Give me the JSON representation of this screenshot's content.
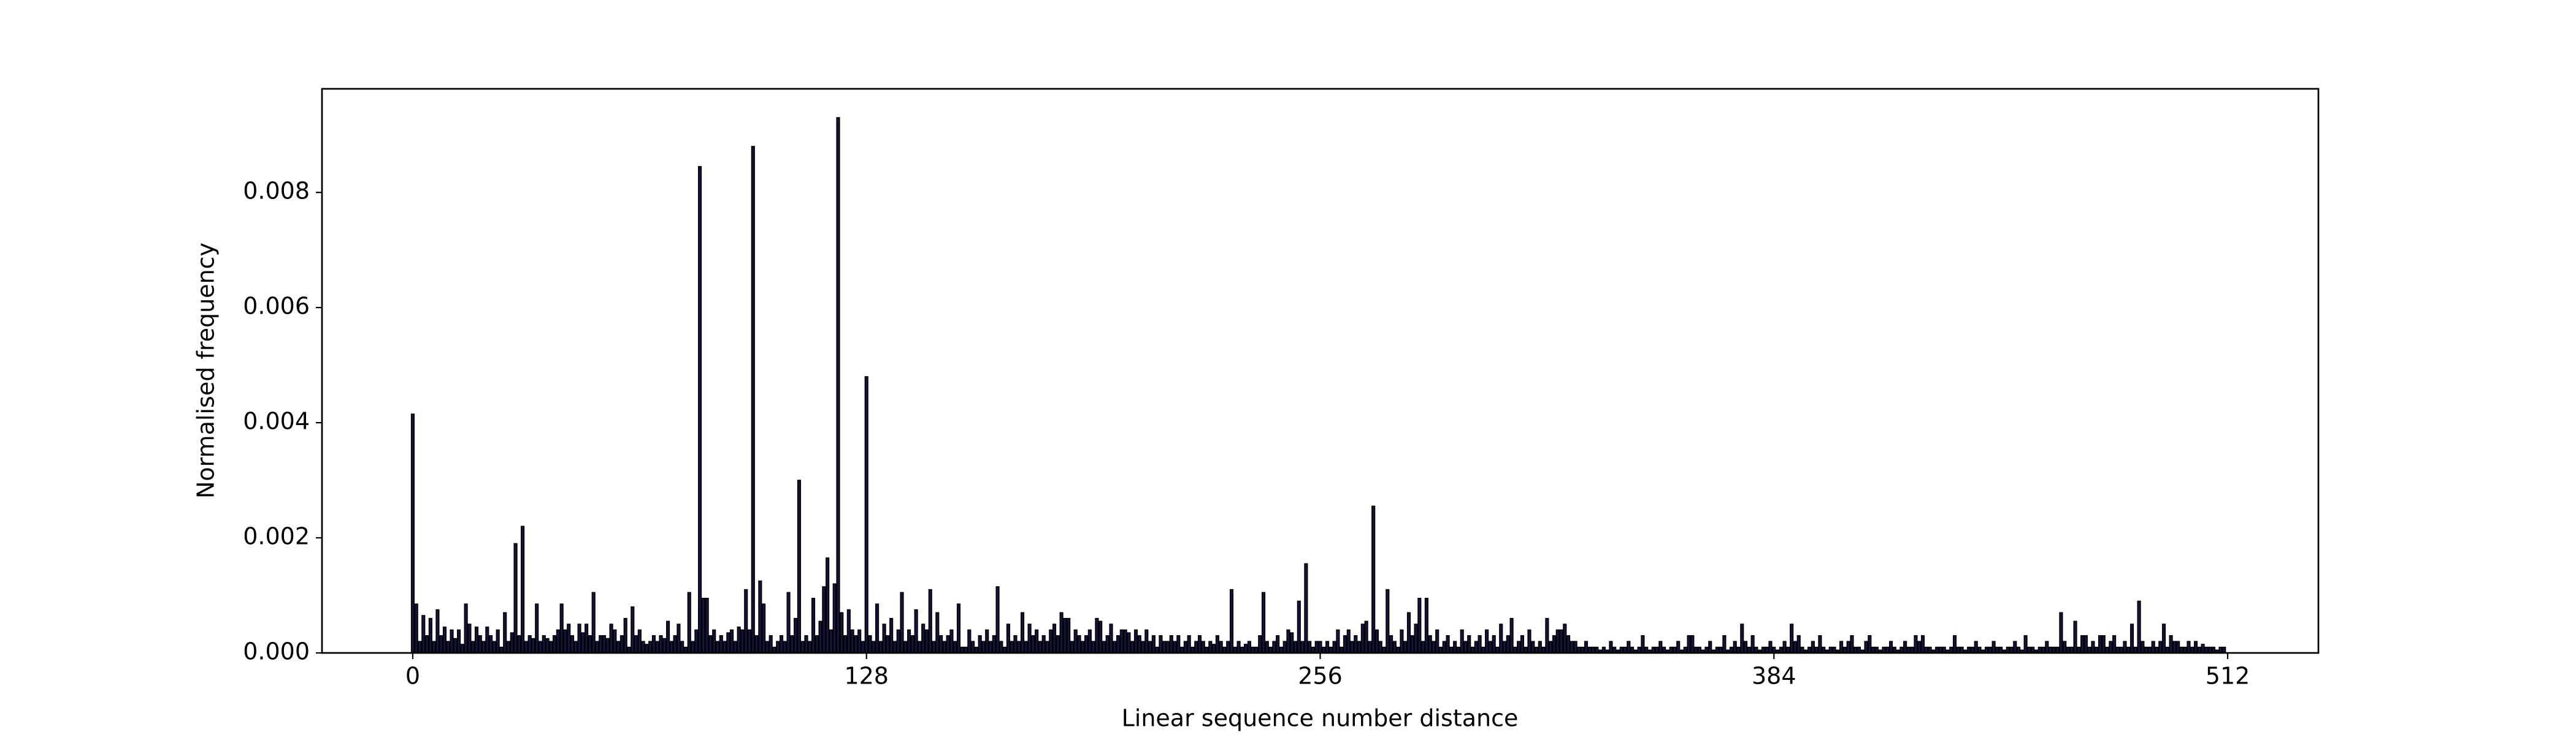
{
  "chart_data": {
    "type": "bar",
    "xlabel": "Linear sequence number distance",
    "ylabel": "Normalised frequency",
    "color": "#14143c",
    "edgecolor": "#000000",
    "xlim": [
      -25.6,
      537.6
    ],
    "ylim": [
      0,
      0.0098
    ],
    "xticks": [
      0,
      128,
      256,
      384,
      512
    ],
    "yticks": [
      {
        "value": 0,
        "label": "0.000"
      },
      {
        "value": 0.002,
        "label": "0.002"
      },
      {
        "value": 0.004,
        "label": "0.004"
      },
      {
        "value": 0.006,
        "label": "0.006"
      },
      {
        "value": 0.008,
        "label": "0.008"
      }
    ],
    "x": [
      0,
      1,
      2,
      3,
      4,
      5,
      6,
      7,
      8,
      9,
      10,
      11,
      12,
      13,
      14,
      15,
      16,
      17,
      18,
      19,
      20,
      21,
      22,
      23,
      24,
      25,
      26,
      27,
      28,
      29,
      30,
      31,
      32,
      33,
      34,
      35,
      36,
      37,
      38,
      39,
      40,
      41,
      42,
      43,
      44,
      45,
      46,
      47,
      48,
      49,
      50,
      51,
      52,
      53,
      54,
      55,
      56,
      57,
      58,
      59,
      60,
      61,
      62,
      63,
      64,
      65,
      66,
      67,
      68,
      69,
      70,
      71,
      72,
      73,
      74,
      75,
      76,
      77,
      78,
      79,
      80,
      81,
      82,
      83,
      84,
      85,
      86,
      87,
      88,
      89,
      90,
      91,
      92,
      93,
      94,
      95,
      96,
      97,
      98,
      99,
      100,
      101,
      102,
      103,
      104,
      105,
      106,
      107,
      108,
      109,
      110,
      111,
      112,
      113,
      114,
      115,
      116,
      117,
      118,
      119,
      120,
      121,
      122,
      123,
      124,
      125,
      126,
      127,
      128,
      129,
      130,
      131,
      132,
      133,
      134,
      135,
      136,
      137,
      138,
      139,
      140,
      141,
      142,
      143,
      144,
      145,
      146,
      147,
      148,
      149,
      150,
      151,
      152,
      153,
      154,
      155,
      156,
      157,
      158,
      159,
      160,
      161,
      162,
      163,
      164,
      165,
      166,
      167,
      168,
      169,
      170,
      171,
      172,
      173,
      174,
      175,
      176,
      177,
      178,
      179,
      180,
      181,
      182,
      183,
      184,
      185,
      186,
      187,
      188,
      189,
      190,
      191,
      192,
      193,
      194,
      195,
      196,
      197,
      198,
      199,
      200,
      201,
      202,
      203,
      204,
      205,
      206,
      207,
      208,
      209,
      210,
      211,
      212,
      213,
      214,
      215,
      216,
      217,
      218,
      219,
      220,
      221,
      222,
      223,
      224,
      225,
      226,
      227,
      228,
      229,
      230,
      231,
      232,
      233,
      234,
      235,
      236,
      237,
      238,
      239,
      240,
      241,
      242,
      243,
      244,
      245,
      246,
      247,
      248,
      249,
      250,
      251,
      252,
      253,
      254,
      255,
      256,
      257,
      258,
      259,
      260,
      261,
      262,
      263,
      264,
      265,
      266,
      267,
      268,
      269,
      270,
      271,
      272,
      273,
      274,
      275,
      276,
      277,
      278,
      279,
      280,
      281,
      282,
      283,
      284,
      285,
      286,
      287,
      288,
      289,
      290,
      291,
      292,
      293,
      294,
      295,
      296,
      297,
      298,
      299,
      300,
      301,
      302,
      303,
      304,
      305,
      306,
      307,
      308,
      309,
      310,
      311,
      312,
      313,
      314,
      315,
      316,
      317,
      318,
      319,
      320,
      321,
      322,
      323,
      324,
      325,
      326,
      327,
      328,
      329,
      330,
      331,
      332,
      333,
      334,
      335,
      336,
      337,
      338,
      339,
      340,
      341,
      342,
      343,
      344,
      345,
      346,
      347,
      348,
      349,
      350,
      351,
      352,
      353,
      354,
      355,
      356,
      357,
      358,
      359,
      360,
      361,
      362,
      363,
      364,
      365,
      366,
      367,
      368,
      369,
      370,
      371,
      372,
      373,
      374,
      375,
      376,
      377,
      378,
      379,
      380,
      381,
      382,
      383,
      384,
      385,
      386,
      387,
      388,
      389,
      390,
      391,
      392,
      393,
      394,
      395,
      396,
      397,
      398,
      399,
      400,
      401,
      402,
      403,
      404,
      405,
      406,
      407,
      408,
      409,
      410,
      411,
      412,
      413,
      414,
      415,
      416,
      417,
      418,
      419,
      420,
      421,
      422,
      423,
      424,
      425,
      426,
      427,
      428,
      429,
      430,
      431,
      432,
      433,
      434,
      435,
      436,
      437,
      438,
      439,
      440,
      441,
      442,
      443,
      444,
      445,
      446,
      447,
      448,
      449,
      450,
      451,
      452,
      453,
      454,
      455,
      456,
      457,
      458,
      459,
      460,
      461,
      462,
      463,
      464,
      465,
      466,
      467,
      468,
      469,
      470,
      471,
      472,
      473,
      474,
      475,
      476,
      477,
      478,
      479,
      480,
      481,
      482,
      483,
      484,
      485,
      486,
      487,
      488,
      489,
      490,
      491,
      492,
      493,
      494,
      495,
      496,
      497,
      498,
      499,
      500,
      501,
      502,
      503,
      504,
      505,
      506,
      507,
      508,
      509,
      510,
      511
    ],
    "values": [
      0.00415,
      0.00085,
      0.0002,
      0.00065,
      0.0003,
      0.0006,
      0.0002,
      0.00075,
      0.0003,
      0.00045,
      0.0002,
      0.0004,
      0.00025,
      0.0004,
      0.00015,
      0.00085,
      0.0005,
      0.0002,
      0.00045,
      0.0003,
      0.0002,
      0.00045,
      0.0003,
      0.0002,
      0.0004,
      0.0001,
      0.0007,
      0.0002,
      0.00035,
      0.0019,
      0.0003,
      0.0022,
      0.0002,
      0.0003,
      0.00025,
      0.00085,
      0.0002,
      0.0003,
      0.00025,
      0.0002,
      0.0003,
      0.0004,
      0.00085,
      0.0004,
      0.0005,
      0.0003,
      0.0002,
      0.0005,
      0.00035,
      0.0005,
      0.0003,
      0.00105,
      0.0002,
      0.0003,
      0.0003,
      0.00025,
      0.0005,
      0.0004,
      0.0002,
      0.0003,
      0.0006,
      0.0001,
      0.0008,
      0.0003,
      0.0004,
      0.0002,
      0.00015,
      0.0002,
      0.0003,
      0.0002,
      0.0003,
      0.00025,
      0.00055,
      0.0002,
      0.0003,
      0.0005,
      0.0002,
      0.0001,
      0.00105,
      0.0002,
      0.0004,
      0.00845,
      0.00095,
      0.00095,
      0.0003,
      0.0004,
      0.0002,
      0.0003,
      0.0002,
      0.00035,
      0.0004,
      0.0002,
      0.00045,
      0.0004,
      0.0011,
      0.0004,
      0.0088,
      0.0003,
      0.00125,
      0.00085,
      0.0002,
      0.0003,
      0.0001,
      0.0002,
      0.0003,
      0.0002,
      0.00105,
      0.0003,
      0.0006,
      0.003,
      0.0002,
      0.0003,
      0.0002,
      0.00095,
      0.0003,
      0.00055,
      0.00115,
      0.00165,
      0.0004,
      0.0012,
      0.0093,
      0.0007,
      0.0003,
      0.00075,
      0.0004,
      0.0003,
      0.0004,
      0.0002,
      0.0048,
      0.0003,
      0.0002,
      0.00085,
      0.0002,
      0.0005,
      0.0003,
      0.0006,
      0.0002,
      0.0004,
      0.00105,
      0.0002,
      0.0004,
      0.0003,
      0.00075,
      0.0002,
      0.0005,
      0.0004,
      0.0011,
      0.0002,
      0.0007,
      0.0003,
      0.0002,
      0.0003,
      0.0004,
      0.0002,
      0.00085,
      0.0001,
      0.0001,
      0.0004,
      0.0002,
      0.0001,
      0.0003,
      0.0002,
      0.0004,
      0.0002,
      0.0003,
      0.00115,
      0.0002,
      0.0001,
      0.0005,
      0.0002,
      0.0003,
      0.0002,
      0.0007,
      0.0002,
      0.0005,
      0.0003,
      0.0004,
      0.0002,
      0.0003,
      0.0002,
      0.0004,
      0.0005,
      0.0003,
      0.0007,
      0.0006,
      0.0006,
      0.0002,
      0.0004,
      0.0003,
      0.0002,
      0.0003,
      0.0004,
      0.0002,
      0.0006,
      0.00055,
      0.0002,
      0.0003,
      0.0005,
      0.0002,
      0.0003,
      0.0004,
      0.0004,
      0.00035,
      0.0002,
      0.0004,
      0.0003,
      0.0002,
      0.0004,
      0.0002,
      0.0003,
      0.0001,
      0.0003,
      0.0002,
      0.0002,
      0.0003,
      0.0002,
      0.0003,
      0.0001,
      0.0002,
      0.0003,
      0.0001,
      0.0002,
      0.0003,
      0.0002,
      0.0001,
      0.0002,
      0.00015,
      0.0003,
      0.0002,
      0.0001,
      0.0002,
      0.0011,
      0.0001,
      0.0002,
      0.0001,
      0.00015,
      0.0002,
      0.0001,
      0.0001,
      0.0003,
      0.00105,
      0.0002,
      0.0001,
      0.0002,
      0.0003,
      0.0001,
      0.0002,
      0.0004,
      0.00035,
      0.0002,
      0.0009,
      0.0002,
      0.00155,
      0.0002,
      0.0001,
      0.0002,
      0.0002,
      0.0001,
      0.0002,
      0.0001,
      0.0002,
      0.0004,
      0.0001,
      0.0003,
      0.0004,
      0.0002,
      0.0003,
      0.0002,
      0.0005,
      0.00055,
      0.0002,
      0.00255,
      0.0004,
      0.0002,
      0.0001,
      0.0011,
      0.0003,
      0.0002,
      0.0001,
      0.0004,
      0.0002,
      0.0007,
      0.0003,
      0.0005,
      0.00095,
      0.0002,
      0.00095,
      0.0003,
      0.0002,
      0.0004,
      0.0001,
      0.0002,
      0.0003,
      0.0001,
      0.0002,
      0.0001,
      0.0004,
      0.0002,
      0.0003,
      0.0001,
      0.0002,
      0.0003,
      0.0001,
      0.0004,
      0.0002,
      0.0003,
      0.0001,
      0.0005,
      0.0002,
      0.0003,
      0.0006,
      0.0001,
      0.0002,
      0.0003,
      0.0001,
      0.0004,
      0.0002,
      0.0001,
      0.0002,
      0.0001,
      0.0006,
      0.0002,
      0.0003,
      0.0004,
      0.0004,
      0.0005,
      0.0003,
      0.0002,
      0.0002,
      0.0001,
      0.0001,
      0.0002,
      0.0001,
      0.0001,
      0.0001,
      5e-05,
      0.0001,
      5e-05,
      0.0002,
      0.0001,
      5e-05,
      0.0001,
      0.0001,
      0.0002,
      0.0001,
      5e-05,
      0.0001,
      0.0003,
      0.0001,
      5e-05,
      0.0001,
      0.0001,
      0.0002,
      0.0001,
      5e-05,
      0.0001,
      0.0001,
      0.0002,
      5e-05,
      0.0001,
      0.0003,
      0.0003,
      0.0001,
      0.0001,
      5e-05,
      0.0001,
      0.0002,
      5e-05,
      0.0001,
      0.0001,
      0.0003,
      5e-05,
      0.0001,
      0.0002,
      0.0001,
      0.0005,
      0.0002,
      0.0001,
      0.0003,
      0.0001,
      5e-05,
      0.0001,
      0.0001,
      0.0002,
      0.0001,
      5e-05,
      0.0001,
      0.0002,
      0.0001,
      0.0005,
      0.0002,
      0.0003,
      0.0001,
      5e-05,
      0.0001,
      0.0002,
      0.0001,
      0.0003,
      0.0001,
      5e-05,
      0.0001,
      0.0001,
      5e-05,
      0.0002,
      0.0001,
      0.0002,
      0.0003,
      0.0001,
      0.0001,
      5e-05,
      0.0002,
      0.0003,
      0.0001,
      0.0001,
      5e-05,
      0.0001,
      0.0001,
      0.0002,
      0.0001,
      5e-05,
      0.0001,
      0.0002,
      0.0001,
      0.0001,
      0.0003,
      0.0002,
      0.0003,
      0.0001,
      0.0001,
      5e-05,
      0.0001,
      0.0001,
      0.0001,
      5e-05,
      0.0001,
      0.0003,
      0.0001,
      0.0001,
      5e-05,
      0.0001,
      0.0001,
      0.0002,
      0.0001,
      5e-05,
      0.0001,
      0.0001,
      0.0002,
      0.0001,
      0.0001,
      5e-05,
      0.0001,
      0.0001,
      0.0002,
      0.0001,
      5e-05,
      0.0003,
      0.0001,
      0.0001,
      5e-05,
      0.0001,
      0.0001,
      0.0002,
      0.0001,
      0.0001,
      0.0001,
      0.0007,
      0.0002,
      0.0001,
      0.0001,
      0.00055,
      0.0001,
      0.0003,
      0.0003,
      0.0001,
      0.0002,
      0.0001,
      0.0003,
      0.0003,
      0.0001,
      0.0002,
      0.0003,
      0.0001,
      0.0001,
      0.0002,
      0.0001,
      0.0005,
      0.0001,
      0.0009,
      0.0002,
      0.0001,
      0.0001,
      0.0002,
      0.0001,
      0.0002,
      0.0005,
      0.0001,
      0.0003,
      0.0002,
      0.0002,
      0.0001,
      0.0001,
      0.0002,
      0.0001,
      0.0002,
      0.0001,
      0.00015,
      0.0001,
      0.0001,
      0.0001,
      5e-05,
      0.0001,
      0.0001
    ]
  }
}
